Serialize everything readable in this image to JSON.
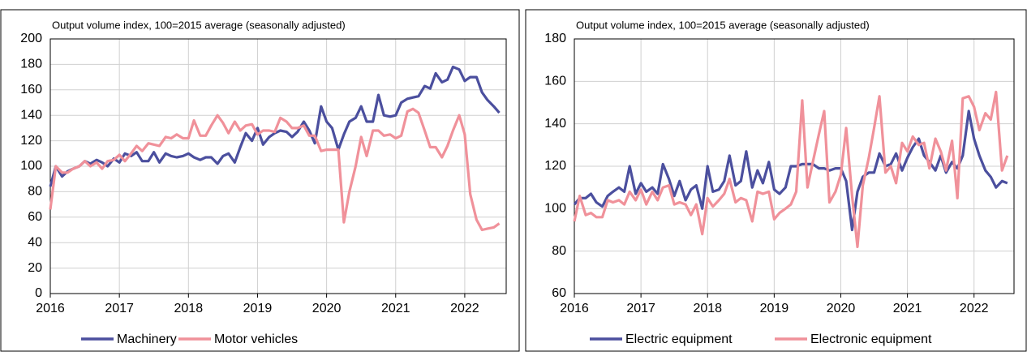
{
  "chart_data": [
    {
      "type": "line",
      "subtitle": "Output volume index, 100=2015 average (seasonally adjusted)",
      "x": [
        2016,
        2016.08,
        2016.17,
        2016.25,
        2016.33,
        2016.42,
        2016.5,
        2016.58,
        2016.67,
        2016.75,
        2016.83,
        2016.92,
        2017,
        2017.08,
        2017.17,
        2017.25,
        2017.33,
        2017.42,
        2017.5,
        2017.58,
        2017.67,
        2017.75,
        2017.83,
        2017.92,
        2018,
        2018.08,
        2018.17,
        2018.25,
        2018.33,
        2018.42,
        2018.5,
        2018.58,
        2018.67,
        2018.75,
        2018.83,
        2018.92,
        2019,
        2019.08,
        2019.17,
        2019.25,
        2019.33,
        2019.42,
        2019.5,
        2019.58,
        2019.67,
        2019.75,
        2019.83,
        2019.92,
        2020,
        2020.08,
        2020.17,
        2020.25,
        2020.33,
        2020.42,
        2020.5,
        2020.58,
        2020.67,
        2020.75,
        2020.83,
        2020.92,
        2021,
        2021.08,
        2021.17,
        2021.25,
        2021.33,
        2021.42,
        2021.5,
        2021.58,
        2021.67,
        2021.75,
        2021.83,
        2021.92,
        2022,
        2022.08,
        2022.17,
        2022.25,
        2022.33,
        2022.42,
        2022.5
      ],
      "series": [
        {
          "name": "Machinery",
          "color": "#4b4f9e",
          "values": [
            84,
            100,
            92,
            96,
            98,
            100,
            104,
            102,
            105,
            103,
            100,
            106,
            103,
            110,
            108,
            111,
            104,
            104,
            111,
            103,
            110,
            108,
            107,
            108,
            110,
            107,
            105,
            107,
            107,
            102,
            108,
            110,
            103,
            115,
            126,
            120,
            130,
            117,
            123,
            126,
            128,
            127,
            123,
            127,
            135,
            128,
            118,
            147,
            135,
            130,
            113,
            125,
            135,
            138,
            147,
            135,
            135,
            156,
            140,
            139,
            140,
            150,
            153,
            154,
            155,
            163,
            161,
            173,
            166,
            168,
            178,
            176,
            167,
            170,
            170,
            158,
            152,
            147,
            142
          ]
        },
        {
          "name": "Motor vehicles",
          "color": "#f0919a",
          "values": [
            66,
            100,
            95,
            95,
            98,
            100,
            104,
            100,
            103,
            98,
            104,
            105,
            109,
            104,
            110,
            116,
            112,
            118,
            117,
            116,
            123,
            122,
            125,
            122,
            122,
            136,
            124,
            124,
            132,
            140,
            134,
            126,
            135,
            128,
            132,
            133,
            125,
            128,
            128,
            127,
            138,
            135,
            130,
            130,
            132,
            124,
            124,
            112,
            113,
            113,
            113,
            56,
            80,
            100,
            123,
            108,
            128,
            128,
            124,
            125,
            122,
            124,
            143,
            145,
            142,
            128,
            115,
            115,
            107,
            116,
            128,
            140,
            125,
            78,
            58,
            50,
            51,
            52,
            55
          ]
        }
      ],
      "xlim": [
        2016,
        2022.6
      ],
      "xticks": [
        2016,
        2017,
        2018,
        2019,
        2020,
        2021,
        2022
      ],
      "ylim": [
        0,
        200
      ],
      "yticks": [
        0,
        20,
        40,
        60,
        80,
        100,
        120,
        140,
        160,
        180,
        200
      ],
      "grid": true
    },
    {
      "type": "line",
      "subtitle": "Output volume index, 100=2015 average (seasonally adjusted)",
      "x": [
        2016,
        2016.08,
        2016.17,
        2016.25,
        2016.33,
        2016.42,
        2016.5,
        2016.58,
        2016.67,
        2016.75,
        2016.83,
        2016.92,
        2017,
        2017.08,
        2017.17,
        2017.25,
        2017.33,
        2017.42,
        2017.5,
        2017.58,
        2017.67,
        2017.75,
        2017.83,
        2017.92,
        2018,
        2018.08,
        2018.17,
        2018.25,
        2018.33,
        2018.42,
        2018.5,
        2018.58,
        2018.67,
        2018.75,
        2018.83,
        2018.92,
        2019,
        2019.08,
        2019.17,
        2019.25,
        2019.33,
        2019.42,
        2019.5,
        2019.58,
        2019.67,
        2019.75,
        2019.83,
        2019.92,
        2020,
        2020.08,
        2020.17,
        2020.25,
        2020.33,
        2020.42,
        2020.5,
        2020.58,
        2020.67,
        2020.75,
        2020.83,
        2020.92,
        2021,
        2021.08,
        2021.17,
        2021.25,
        2021.33,
        2021.42,
        2021.5,
        2021.58,
        2021.67,
        2021.75,
        2021.83,
        2021.92,
        2022,
        2022.08,
        2022.17,
        2022.25,
        2022.33,
        2022.42,
        2022.5
      ],
      "series": [
        {
          "name": "Electric equipment",
          "color": "#4b4f9e",
          "values": [
            102,
            105,
            105,
            107,
            103,
            101,
            106,
            108,
            110,
            108,
            120,
            107,
            112,
            108,
            110,
            107,
            121,
            114,
            106,
            113,
            104,
            109,
            111,
            100,
            120,
            108,
            109,
            113,
            125,
            111,
            113,
            127,
            110,
            118,
            112,
            122,
            109,
            107,
            110,
            120,
            120,
            121,
            121,
            121,
            119,
            119,
            118,
            119,
            119,
            113,
            90,
            108,
            115,
            117,
            117,
            126,
            120,
            121,
            126,
            118,
            124,
            129,
            133,
            125,
            122,
            118,
            125,
            117,
            122,
            119,
            125,
            146,
            133,
            125,
            118,
            115,
            110,
            113,
            112
          ]
        },
        {
          "name": "Electronic equipment",
          "color": "#f0919a",
          "values": [
            94,
            106,
            97,
            98,
            96,
            96,
            104,
            103,
            104,
            102,
            108,
            104,
            109,
            102,
            108,
            104,
            110,
            111,
            102,
            103,
            102,
            97,
            102,
            88,
            105,
            101,
            104,
            107,
            114,
            103,
            105,
            104,
            94,
            108,
            107,
            108,
            95,
            98,
            100,
            102,
            108,
            151,
            110,
            122,
            135,
            146,
            103,
            108,
            116,
            138,
            106,
            82,
            111,
            124,
            138,
            153,
            117,
            120,
            112,
            131,
            127,
            134,
            130,
            131,
            119,
            133,
            127,
            118,
            132,
            105,
            152,
            153,
            148,
            137,
            145,
            142,
            155,
            118,
            125
          ]
        }
      ],
      "xlim": [
        2016,
        2022.6
      ],
      "xticks": [
        2016,
        2017,
        2018,
        2019,
        2020,
        2021,
        2022
      ],
      "ylim": [
        60,
        180
      ],
      "yticks": [
        60,
        80,
        100,
        120,
        140,
        160,
        180
      ],
      "grid": true
    }
  ]
}
